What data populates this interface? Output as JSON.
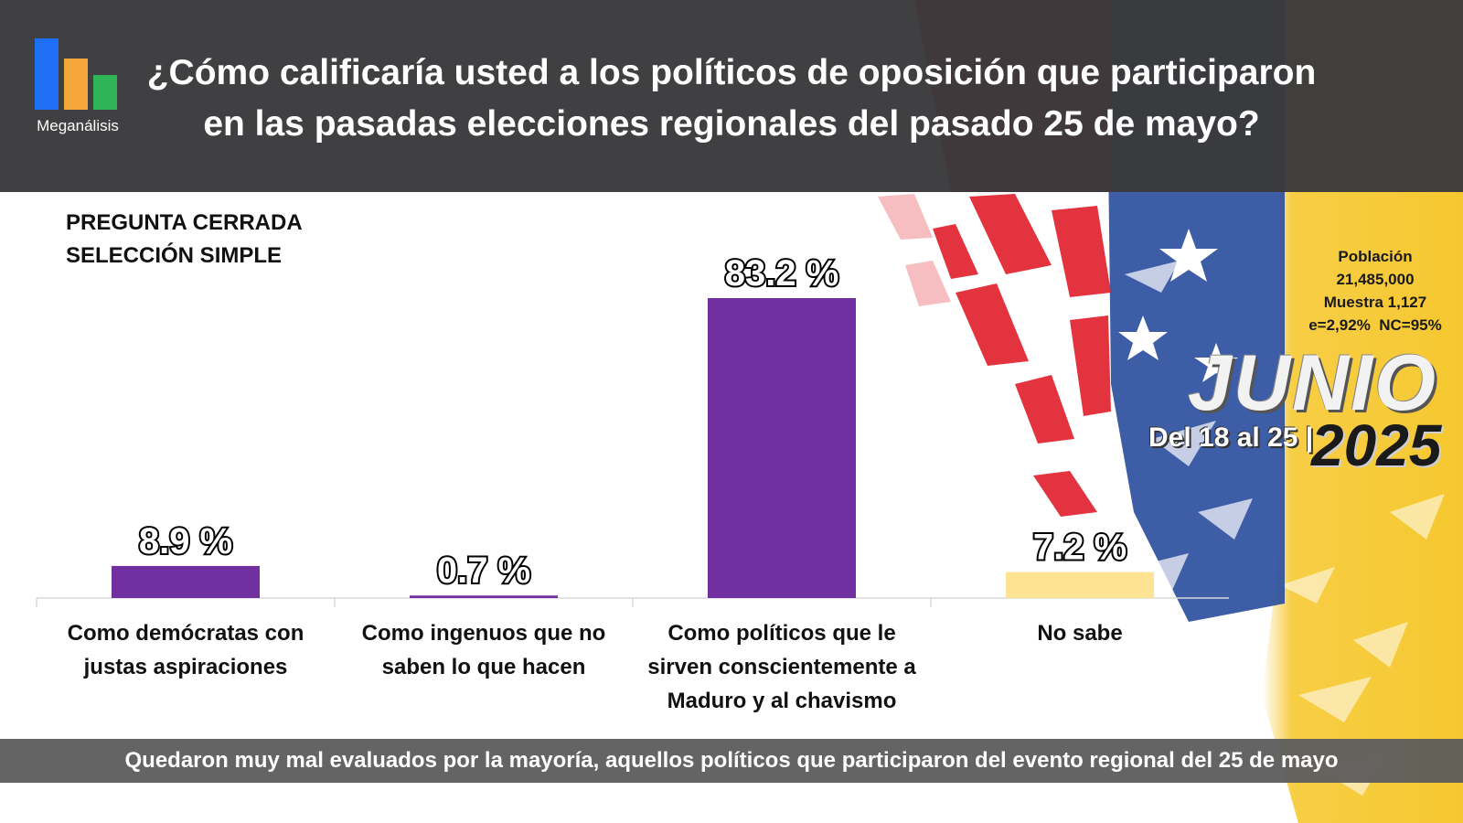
{
  "header": {
    "title_line1": "¿Cómo calificaría usted a los políticos de oposición que participaron",
    "title_line2": "en las pasadas elecciones regionales del pasado 25 de mayo?",
    "logo": {
      "text": "Meganálisis",
      "bar_colors": [
        "#1e6ff5",
        "#f4a63a",
        "#2fb457"
      ]
    }
  },
  "question_type": {
    "line1": "PREGUNTA CERRADA",
    "line2": "SELECCIÓN SIMPLE"
  },
  "survey_info": {
    "poblacion_label": "Población",
    "poblacion_value": "21,485,000",
    "muestra": "Muestra 1,127",
    "error": "e=2,92%  NC=95%",
    "month": "JUNIO",
    "range": "Del 18 al 25 |",
    "year": "2025"
  },
  "chart_data": {
    "type": "bar",
    "title": "¿Cómo calificaría usted a los políticos de oposición que participaron en las pasadas elecciones regionales del pasado 25 de mayo?",
    "categories": [
      [
        "Como demócratas con",
        "justas aspiraciones"
      ],
      [
        "Como ingenuos que no",
        "saben lo que hacen"
      ],
      [
        "Como políticos que le",
        "sirven conscientemente a",
        "Maduro y al chavismo"
      ],
      [
        "No sabe"
      ]
    ],
    "values": [
      8.9,
      0.7,
      83.2,
      7.2
    ],
    "value_labels": [
      "8.9 %",
      "0.7 %",
      "83.2 %",
      "7.2 %"
    ],
    "bar_colors": [
      "#7030a0",
      "#7030a0",
      "#7030a0",
      "#fde392"
    ],
    "ylim": [
      0,
      100
    ],
    "grid": false,
    "legend": "none"
  },
  "footer": {
    "text": "Quedaron muy mal evaluados por la mayoría, aquellos políticos que participaron del evento regional del 25 de mayo"
  },
  "colors": {
    "header_bg": "#3a3a3c",
    "footer_bg": "#5c5c5c",
    "flag_yellow": "#f6c830",
    "flag_blue": "#2c4f9e",
    "flag_red": "#e11d2b"
  }
}
